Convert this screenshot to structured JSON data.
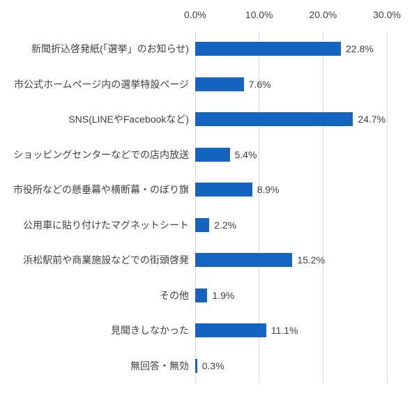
{
  "chart_data": {
    "type": "bar",
    "orientation": "horizontal",
    "title": "",
    "xlabel": "",
    "ylabel": "",
    "categories": [
      "新聞折込啓発紙(「選挙」のお知らせ)",
      "市公式ホームページ内の選挙特設ページ",
      "SNS(LINEやFacebookなど)",
      "ショッピングセンターなどでの店内放送",
      "市役所などの懸垂幕や横断幕・のぼり旗",
      "公用車に貼り付けたマグネットシート",
      "浜松駅前や商業施設などでの街頭啓発",
      "その他",
      "見聞きしなかった",
      "無回答・無効"
    ],
    "values": [
      22.8,
      7.6,
      24.7,
      5.4,
      8.9,
      2.2,
      15.2,
      1.9,
      11.1,
      0.3
    ],
    "value_labels": [
      "22.8%",
      "7.6%",
      "24.7%",
      "5.4%",
      "8.9%",
      "2.2%",
      "15.2%",
      "1.9%",
      "11.1%",
      "0.3%"
    ],
    "xlim": [
      0,
      30
    ],
    "x_ticks": [
      "0.0%",
      "10.0%",
      "20.0%",
      "30.0%"
    ],
    "x_tick_values": [
      0,
      10,
      20,
      30
    ],
    "grid": true,
    "legend": false,
    "axis_position": "top",
    "colors": {
      "bar": "#1565c0",
      "gridline": "#d9d9d9",
      "text": "#404040",
      "background": "#ffffff"
    }
  }
}
